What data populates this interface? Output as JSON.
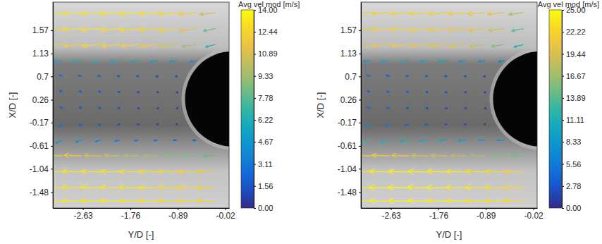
{
  "chart_data": [
    {
      "type": "vector_field",
      "x_label": "Y/D [-]",
      "y_label": "X/D [-]",
      "xlim": [
        -3.18,
        0.05
      ],
      "ylim": [
        -1.78,
        2.1
      ],
      "xticks": [
        -2.63,
        -1.76,
        -0.89,
        -0.02
      ],
      "yticks": [
        -1.48,
        -1.04,
        -0.61,
        -0.17,
        0.26,
        0.7,
        1.13,
        1.57
      ],
      "colorbar": {
        "title": "Avg vel mod [m/s]",
        "range": [
          0,
          14
        ],
        "ticks": [
          {
            "value": 0,
            "label": "0.00"
          },
          {
            "value": 1.56,
            "label": "1.56"
          },
          {
            "value": 3.11,
            "label": "3.11"
          },
          {
            "value": 4.67,
            "label": "4.67"
          },
          {
            "value": 6.22,
            "label": "6.22"
          },
          {
            "value": 7.78,
            "label": "7.78"
          },
          {
            "value": 9.33,
            "label": "9.33"
          },
          {
            "value": 10.89,
            "label": "10.89"
          },
          {
            "value": 12.44,
            "label": "12.44"
          },
          {
            "value": 14,
            "label": "14.00"
          }
        ]
      },
      "x": [
        -3.0,
        -2.65,
        -2.3,
        -1.95,
        -1.6,
        -1.25,
        -0.9,
        -0.55,
        -0.2
      ],
      "y": [
        1.9,
        1.6,
        1.3,
        1.0,
        0.7,
        0.4,
        0.1,
        -0.2,
        -0.5,
        -0.8,
        -1.1,
        -1.4,
        -1.65
      ],
      "u": [
        [
          -12.8,
          -12.9,
          -13.0,
          -13.0,
          -12.9,
          -12.8,
          -12.6,
          -12.0,
          -10.5
        ],
        [
          -12.6,
          -12.8,
          -12.9,
          -12.9,
          -12.8,
          -12.5,
          -12.2,
          -11.2,
          -8.0
        ],
        [
          -11.8,
          -12.2,
          -12.4,
          -12.4,
          -12.2,
          -11.8,
          -11.0,
          -9.5,
          -6.5
        ],
        [
          -5.5,
          -6.2,
          -6.5,
          -6.0,
          -5.8,
          -5.2,
          -4.8,
          -4.0,
          null
        ],
        [
          -2.5,
          -2.2,
          -2.0,
          -1.8,
          -1.6,
          -1.4,
          -1.2,
          null,
          null
        ],
        [
          -2.0,
          -1.8,
          -1.5,
          -1.3,
          -1.1,
          -0.9,
          -0.7,
          null,
          null
        ],
        [
          -1.8,
          -1.6,
          -1.4,
          -1.2,
          -1.0,
          -0.8,
          -0.6,
          null,
          null
        ],
        [
          -2.2,
          -1.9,
          -1.6,
          -1.4,
          -1.2,
          -1.0,
          -0.8,
          null,
          null
        ],
        [
          -4.5,
          -4.0,
          -3.5,
          -3.2,
          -3.0,
          -2.8,
          -2.5,
          -2.2,
          null
        ],
        [
          -11.5,
          -11.8,
          -11.0,
          -10.5,
          -10.0,
          -9.5,
          -9.0,
          -8.5,
          -8.0
        ],
        [
          -12.8,
          -13.0,
          -13.1,
          -13.0,
          -12.9,
          -12.7,
          -12.5,
          -12.2,
          -12.0
        ],
        [
          -13.0,
          -13.2,
          -13.3,
          -13.2,
          -13.1,
          -13.0,
          -12.8,
          -12.6,
          -12.4
        ],
        [
          -12.9,
          -13.1,
          -13.2,
          -13.2,
          -13.0,
          -12.9,
          -12.7,
          -12.5,
          -12.3
        ]
      ],
      "v": [
        [
          -0.6,
          -0.6,
          -0.7,
          -0.7,
          -0.8,
          -0.8,
          -0.9,
          -1.0,
          -1.2
        ],
        [
          -0.7,
          -0.7,
          -0.8,
          -0.8,
          -0.9,
          -1.0,
          -1.1,
          -1.3,
          -1.5
        ],
        [
          -0.8,
          -0.8,
          -0.9,
          -0.9,
          -1.0,
          -1.1,
          -1.2,
          -1.4,
          -1.6
        ],
        [
          -0.5,
          -0.5,
          -0.6,
          -0.6,
          -0.6,
          -0.7,
          -0.7,
          -0.8,
          null
        ],
        [
          1.0,
          0.8,
          0.6,
          0.4,
          0.3,
          0.2,
          0.1,
          null,
          null
        ],
        [
          1.2,
          0.9,
          0.6,
          0.4,
          0.2,
          0.1,
          0.0,
          null,
          null
        ],
        [
          0.8,
          0.5,
          0.3,
          0.1,
          0.0,
          -0.1,
          -0.2,
          null,
          null
        ],
        [
          -1.5,
          -1.0,
          -0.6,
          -0.4,
          -0.2,
          -0.1,
          0.0,
          null,
          null
        ],
        [
          -2.0,
          -1.4,
          -0.9,
          -0.6,
          -0.4,
          -0.3,
          -0.2,
          -0.2,
          null
        ],
        [
          0.6,
          0.5,
          0.4,
          0.4,
          0.3,
          0.3,
          0.3,
          0.3,
          0.3
        ],
        [
          0.5,
          0.5,
          0.4,
          0.4,
          0.4,
          0.4,
          0.4,
          0.4,
          0.4
        ],
        [
          0.4,
          0.4,
          0.4,
          0.4,
          0.3,
          0.3,
          0.3,
          0.3,
          0.3
        ],
        [
          0.3,
          0.3,
          0.3,
          0.3,
          0.3,
          0.3,
          0.3,
          0.3,
          0.3
        ]
      ]
    },
    {
      "type": "vector_field",
      "x_label": "Y/D [-]",
      "y_label": "X/D [-]",
      "xlim": [
        -3.18,
        0.05
      ],
      "ylim": [
        -1.78,
        2.1
      ],
      "xticks": [
        -2.63,
        -1.76,
        -0.89,
        -0.02
      ],
      "yticks": [
        -1.48,
        -1.04,
        -0.61,
        -0.17,
        0.26,
        0.7,
        1.13,
        1.57
      ],
      "colorbar": {
        "title": "Avg vel mod [m/s]",
        "range": [
          0,
          25
        ],
        "ticks": [
          {
            "value": 0,
            "label": "0.00"
          },
          {
            "value": 2.78,
            "label": "2.78"
          },
          {
            "value": 5.56,
            "label": "5.56"
          },
          {
            "value": 8.33,
            "label": "8.33"
          },
          {
            "value": 11.11,
            "label": "11.11"
          },
          {
            "value": 13.89,
            "label": "13.89"
          },
          {
            "value": 16.67,
            "label": "16.67"
          },
          {
            "value": 19.44,
            "label": "19.44"
          },
          {
            "value": 22.22,
            "label": "22.22"
          },
          {
            "value": 25,
            "label": "25.00"
          }
        ]
      },
      "x": [
        -3.0,
        -2.65,
        -2.3,
        -1.95,
        -1.6,
        -1.25,
        -0.9,
        -0.55,
        -0.2
      ],
      "y": [
        1.9,
        1.6,
        1.3,
        1.0,
        0.7,
        0.4,
        0.1,
        -0.2,
        -0.5,
        -0.8,
        -1.1,
        -1.4,
        -1.65
      ],
      "u": [
        [
          -21.5,
          -21.8,
          -22.0,
          -22.0,
          -21.8,
          -21.5,
          -21.0,
          -20.0,
          -17.5
        ],
        [
          -21.2,
          -21.6,
          -21.8,
          -21.8,
          -21.5,
          -21.0,
          -20.5,
          -19.0,
          -14.0
        ],
        [
          -20.0,
          -20.8,
          -21.2,
          -21.0,
          -20.6,
          -20.0,
          -18.5,
          -15.5,
          -11.0
        ],
        [
          -9.0,
          -10.0,
          -10.5,
          -10.0,
          -9.5,
          -8.5,
          -7.5,
          -6.5,
          null
        ],
        [
          -4.5,
          -4.0,
          -3.6,
          -3.2,
          -2.8,
          -2.4,
          -2.0,
          null,
          null
        ],
        [
          -4.0,
          -3.5,
          -3.0,
          -2.6,
          -2.2,
          -1.8,
          -1.4,
          null,
          null
        ],
        [
          -4.2,
          -3.6,
          -3.0,
          -2.5,
          -2.0,
          -1.6,
          -1.2,
          null,
          null
        ],
        [
          -6.5,
          -5.0,
          -4.0,
          -3.2,
          -2.6,
          -2.0,
          -1.6,
          null,
          null
        ],
        [
          -12.0,
          -11.0,
          -10.5,
          -10.0,
          -9.5,
          -9.0,
          -8.5,
          -8.0,
          null
        ],
        [
          -21.0,
          -21.5,
          -20.5,
          -19.5,
          -19.0,
          -18.0,
          -17.0,
          -16.0,
          -15.0
        ],
        [
          -23.5,
          -24.0,
          -24.2,
          -24.0,
          -23.8,
          -23.5,
          -23.0,
          -22.5,
          -22.0
        ],
        [
          -24.0,
          -24.4,
          -24.6,
          -24.5,
          -24.3,
          -24.0,
          -23.6,
          -23.2,
          -22.8
        ],
        [
          -23.8,
          -24.2,
          -24.4,
          -24.3,
          -24.0,
          -23.8,
          -23.4,
          -23.0,
          -22.6
        ]
      ],
      "v": [
        [
          -1.0,
          -1.0,
          -1.1,
          -1.2,
          -1.3,
          -1.4,
          -1.5,
          -1.7,
          -2.0
        ],
        [
          -1.1,
          -1.2,
          -1.3,
          -1.4,
          -1.5,
          -1.7,
          -1.9,
          -2.2,
          -2.6
        ],
        [
          -1.3,
          -1.4,
          -1.5,
          -1.6,
          -1.7,
          -1.9,
          -2.1,
          -2.4,
          -2.8
        ],
        [
          -0.8,
          -0.8,
          -0.9,
          -1.0,
          -1.0,
          -1.1,
          -1.2,
          -1.3,
          null
        ],
        [
          1.6,
          1.2,
          0.9,
          0.6,
          0.4,
          0.3,
          0.2,
          null,
          null
        ],
        [
          1.8,
          1.4,
          1.0,
          0.6,
          0.3,
          0.2,
          0.1,
          null,
          null
        ],
        [
          1.0,
          0.6,
          0.3,
          0.1,
          0.0,
          -0.1,
          -0.2,
          null,
          null
        ],
        [
          -3.0,
          -2.0,
          -1.2,
          -0.7,
          -0.4,
          -0.2,
          -0.1,
          null,
          null
        ],
        [
          -3.5,
          -2.5,
          -1.6,
          -1.1,
          -0.8,
          -0.6,
          -0.4,
          -0.3,
          null
        ],
        [
          1.0,
          0.9,
          0.8,
          0.7,
          0.6,
          0.6,
          0.5,
          0.5,
          0.5
        ],
        [
          0.8,
          0.8,
          0.7,
          0.7,
          0.7,
          0.7,
          0.7,
          0.7,
          0.7
        ],
        [
          0.6,
          0.6,
          0.6,
          0.6,
          0.5,
          0.5,
          0.5,
          0.5,
          0.5
        ],
        [
          0.5,
          0.5,
          0.5,
          0.5,
          0.5,
          0.5,
          0.5,
          0.5,
          0.5
        ]
      ]
    }
  ]
}
